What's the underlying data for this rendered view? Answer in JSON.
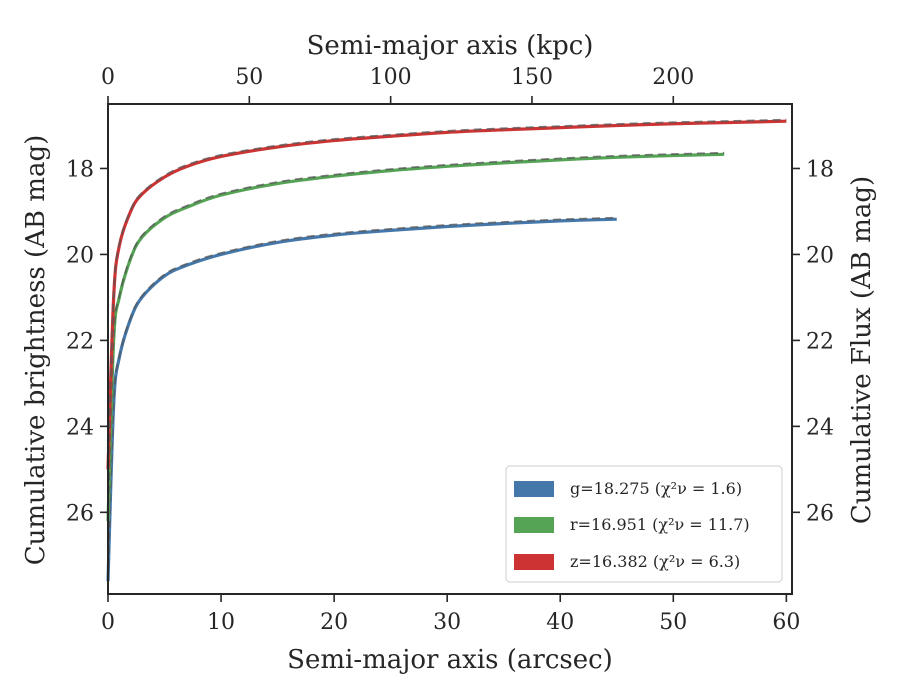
{
  "chart_data": {
    "type": "line",
    "xlabel": "Semi-major axis (arcsec)",
    "x2label": "Semi-major axis (kpc)",
    "ylabel": "Cumulative brightness (AB mag)",
    "y2label": "Cumulative Flux (AB mag)",
    "xlim": [
      0,
      60.5
    ],
    "x2lim": [
      0,
      242
    ],
    "ylim": [
      27.9,
      16.5
    ],
    "y_inverted": true,
    "x_ticks": [
      "0",
      "10",
      "20",
      "30",
      "40",
      "50",
      "60"
    ],
    "x2_ticks": [
      "0",
      "50",
      "100",
      "150",
      "200"
    ],
    "y_ticks": [
      "18",
      "20",
      "22",
      "24",
      "26"
    ],
    "y2_ticks": [
      "18",
      "20",
      "22",
      "24",
      "26"
    ],
    "legend_position": "lower-right",
    "grid": false,
    "series": [
      {
        "name": "g=18.275 (χ²ν = 1.6)",
        "band": "g",
        "color": "#4477aa",
        "x": [
          0,
          0.5,
          1,
          2,
          3,
          5,
          7,
          10,
          15,
          20,
          25,
          30,
          35,
          40,
          45
        ],
        "y": [
          27.6,
          23.5,
          22.4,
          21.5,
          21.0,
          20.5,
          20.25,
          20.0,
          19.72,
          19.55,
          19.44,
          19.35,
          19.28,
          19.22,
          19.18
        ]
      },
      {
        "name": "r=16.951 (χ²ν = 11.7)",
        "band": "r",
        "color": "#55a355",
        "x": [
          0,
          0.5,
          1,
          2,
          3,
          5,
          7,
          10,
          15,
          20,
          25,
          30,
          35,
          40,
          45,
          50,
          54.5
        ],
        "y": [
          26.2,
          22.0,
          21.0,
          20.1,
          19.6,
          19.15,
          18.9,
          18.62,
          18.35,
          18.18,
          18.05,
          17.95,
          17.87,
          17.8,
          17.74,
          17.7,
          17.67
        ]
      },
      {
        "name": "z=16.382 (χ²ν = 6.3)",
        "band": "z",
        "color": "#cc3333",
        "x": [
          0,
          0.5,
          1,
          2,
          3,
          5,
          7,
          10,
          15,
          20,
          25,
          30,
          35,
          40,
          45,
          50,
          55,
          60
        ],
        "y": [
          25.0,
          21.0,
          19.8,
          19.0,
          18.6,
          18.2,
          17.95,
          17.72,
          17.5,
          17.35,
          17.25,
          17.16,
          17.1,
          17.05,
          17.0,
          16.96,
          16.93,
          16.9
        ]
      }
    ]
  }
}
